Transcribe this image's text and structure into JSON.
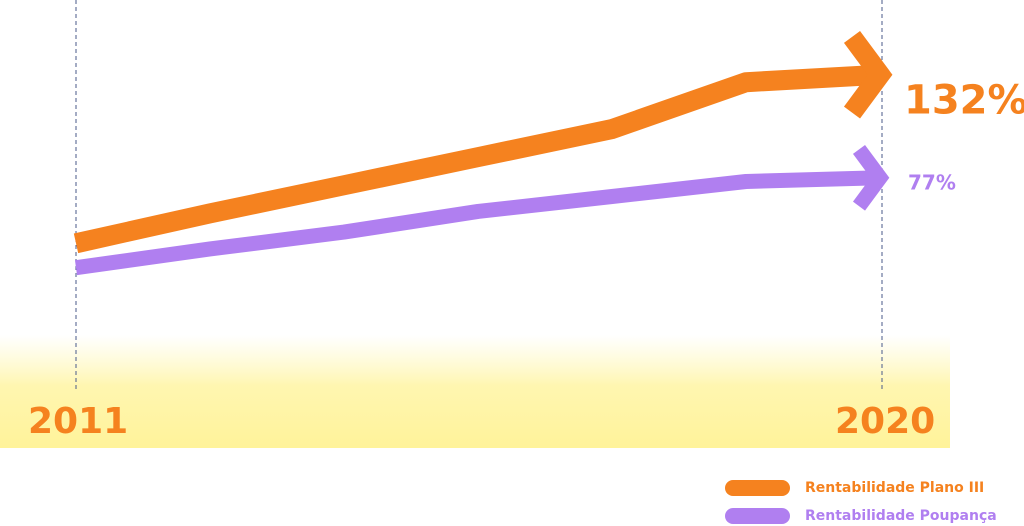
{
  "chart_data": {
    "type": "line",
    "categories": [
      "2011",
      null,
      null,
      null,
      null,
      null,
      "2020"
    ],
    "ylim": [
      0,
      150
    ],
    "series": [
      {
        "name": "Rentabilidade Plano III",
        "color": "#f5821f",
        "values": [
          42,
          58,
          73,
          88,
          103,
          128,
          132
        ],
        "value_labels": [
          null,
          null,
          null,
          null,
          null,
          null,
          "132%"
        ]
      },
      {
        "name": "Rentabilidade Poupança",
        "color": "#b07ff0",
        "values": [
          29,
          39,
          48,
          59,
          67,
          75,
          77
        ],
        "value_labels": [
          null,
          null,
          null,
          null,
          null,
          null,
          "77%"
        ]
      }
    ]
  }
}
